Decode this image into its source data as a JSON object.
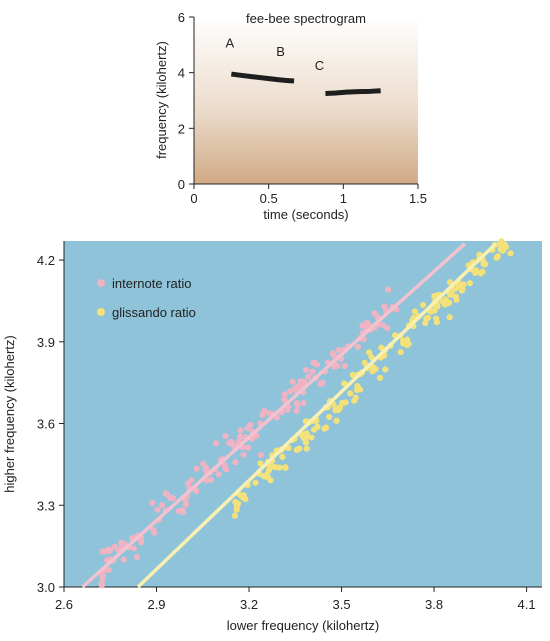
{
  "chart_data": [
    {
      "type": "line",
      "title": "fee-bee spectrogram",
      "xlabel": "time (seconds)",
      "ylabel": "frequency (kilohertz)",
      "xlim": [
        0,
        1.5
      ],
      "ylim": [
        0,
        6
      ],
      "xticks": [
        "0",
        "0.5",
        "1",
        "1.5"
      ],
      "yticks": [
        "0",
        "2",
        "4",
        "6"
      ],
      "background": "gradient from white (top) to tan (bottom)",
      "annotations": [
        {
          "text": "A",
          "x": 0.24,
          "y": 4.9
        },
        {
          "text": "B",
          "x": 0.58,
          "y": 4.6
        },
        {
          "text": "C",
          "x": 0.84,
          "y": 4.1
        }
      ],
      "series": [
        {
          "values_x": [
            0.25,
            0.32,
            0.4,
            0.48,
            0.56,
            0.62,
            0.67
          ],
          "values_y": [
            3.95,
            3.9,
            3.85,
            3.8,
            3.75,
            3.72,
            3.7
          ]
        },
        {
          "values_x": [
            0.88,
            0.95,
            1.02,
            1.1,
            1.18,
            1.25
          ],
          "values_y": [
            3.25,
            3.27,
            3.3,
            3.32,
            3.33,
            3.35
          ]
        }
      ],
      "grid": false
    },
    {
      "type": "scatter",
      "xlabel": "lower frequency (kilohertz)",
      "ylabel": "higher frequency (kilohertz)",
      "xlim": [
        2.6,
        4.15
      ],
      "ylim": [
        3.0,
        4.27
      ],
      "xticks": [
        "2.6",
        "2.9",
        "3.2",
        "3.5",
        "3.8",
        "4.1"
      ],
      "yticks": [
        "3.0",
        "3.3",
        "3.6",
        "3.9",
        "4.2"
      ],
      "background_color": "#8fc3d9",
      "legend_position": "top-left",
      "series": [
        {
          "name": "internote ratio",
          "color": "#f0b3c3",
          "trend": {
            "x": [
              2.66,
              3.9
            ],
            "y": [
              3.0,
              4.26
            ]
          },
          "cluster": {
            "x_min": 2.72,
            "x_max": 3.68,
            "slope": 1.02,
            "intercept": 0.29,
            "spread": 0.05,
            "n": 170
          }
        },
        {
          "name": "glissando ratio",
          "color": "#f3e27a",
          "trend": {
            "x": [
              2.84,
              4.0
            ],
            "y": [
              3.0,
              4.26
            ]
          },
          "cluster": {
            "x_min": 3.15,
            "x_max": 4.05,
            "slope": 1.08,
            "intercept": -0.09,
            "spread": 0.045,
            "n": 190
          }
        }
      ],
      "grid": false
    }
  ]
}
